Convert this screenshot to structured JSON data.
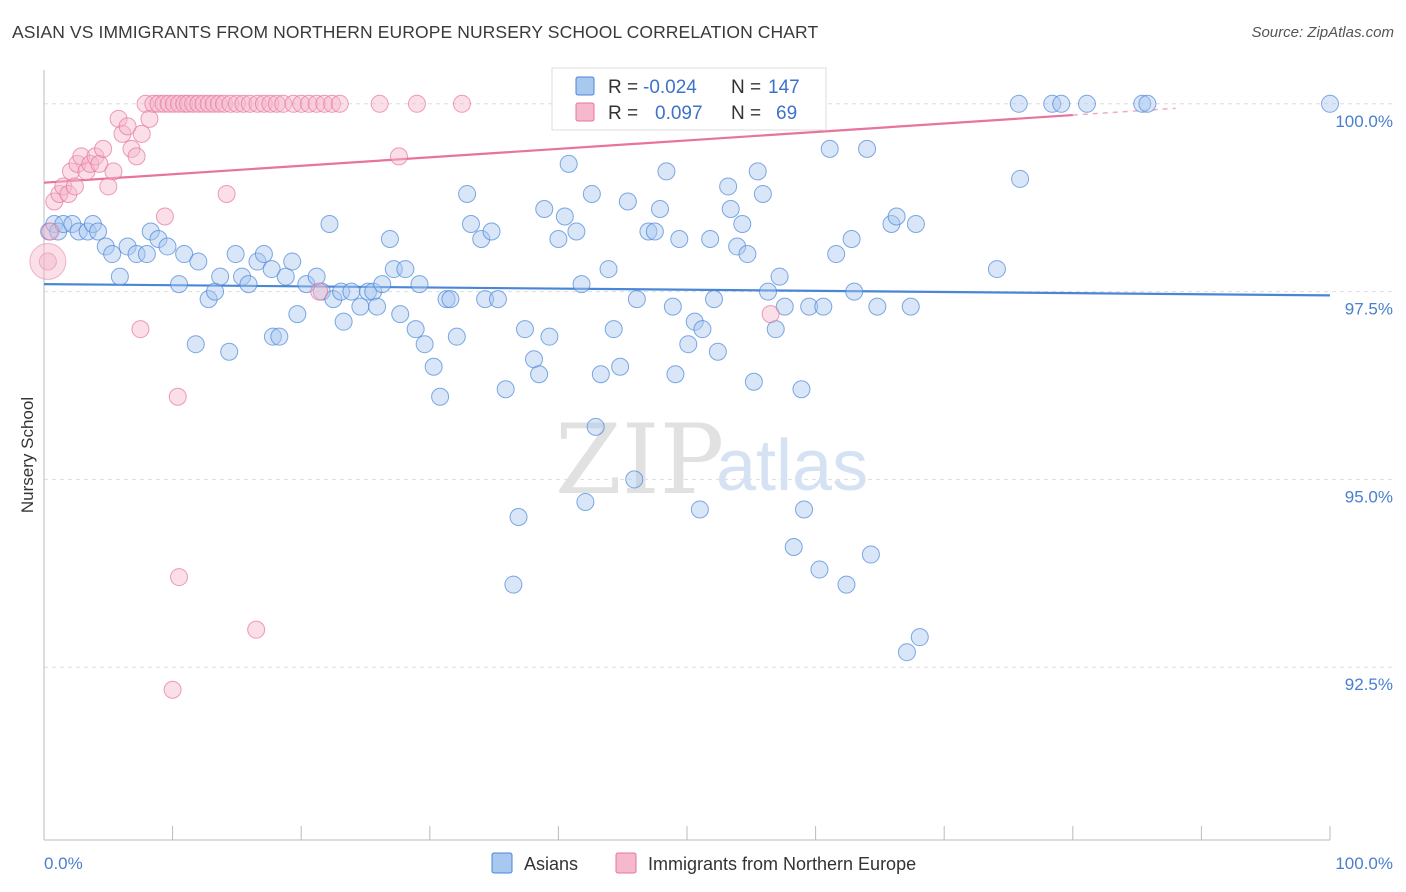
{
  "title": "ASIAN VS IMMIGRANTS FROM NORTHERN EUROPE NURSERY SCHOOL CORRELATION CHART",
  "source": "Source: ZipAtlas.com",
  "watermark": {
    "zip": "ZIP",
    "atlas": "atlas"
  },
  "colors": {
    "blue": "#4a86d8",
    "blue_fill": "#a9c8ef",
    "pink": "#e8739b",
    "pink_fill": "#f5b8cd",
    "tick": "#4a7fcc",
    "grid": "#dddddd"
  },
  "legend_box": {
    "rows": [
      {
        "r_label": "R =",
        "r_value": "-0.024",
        "n_label": "N =",
        "n_value": "147"
      },
      {
        "r_label": "R =",
        "r_value": "0.097",
        "n_label": "N =",
        "n_value": "69"
      }
    ]
  },
  "chart_data": {
    "type": "scatter",
    "title": "ASIAN VS IMMIGRANTS FROM NORTHERN EUROPE NURSERY SCHOOL CORRELATION CHART",
    "xlabel": "",
    "ylabel": "Nursery School",
    "xlim": [
      0,
      100
    ],
    "ylim": [
      90.2,
      100.45
    ],
    "x_tick_labels": [
      "0.0%",
      "100.0%"
    ],
    "y_ticks": [
      100.0,
      97.5,
      95.0,
      92.5
    ],
    "y_tick_labels": [
      "100.0%",
      "97.5%",
      "95.0%",
      "92.5%"
    ],
    "grid": true,
    "legend_position": "bottom",
    "series": [
      {
        "name": "Asians",
        "color": "#4a86d8",
        "trend": {
          "x": [
            0,
            100
          ],
          "y": [
            97.6,
            97.45
          ]
        },
        "points": [
          [
            0.4,
            98.3
          ],
          [
            0.8,
            98.4
          ],
          [
            1.1,
            98.3
          ],
          [
            1.5,
            98.4
          ],
          [
            2.2,
            98.4
          ],
          [
            2.7,
            98.3
          ],
          [
            3.4,
            98.3
          ],
          [
            3.8,
            98.4
          ],
          [
            4.2,
            98.3
          ],
          [
            4.8,
            98.1
          ],
          [
            5.3,
            98.0
          ],
          [
            5.9,
            97.7
          ],
          [
            6.5,
            98.1
          ],
          [
            7.2,
            98.0
          ],
          [
            8.0,
            98.0
          ],
          [
            8.3,
            98.3
          ],
          [
            8.9,
            98.2
          ],
          [
            9.6,
            98.1
          ],
          [
            10.5,
            97.6
          ],
          [
            10.9,
            98.0
          ],
          [
            11.8,
            96.8
          ],
          [
            12.0,
            97.9
          ],
          [
            12.8,
            97.4
          ],
          [
            13.3,
            97.5
          ],
          [
            13.7,
            97.7
          ],
          [
            14.4,
            96.7
          ],
          [
            14.9,
            98.0
          ],
          [
            15.4,
            97.7
          ],
          [
            15.9,
            97.6
          ],
          [
            16.6,
            97.9
          ],
          [
            17.1,
            98.0
          ],
          [
            17.7,
            97.8
          ],
          [
            17.8,
            96.9
          ],
          [
            18.3,
            96.9
          ],
          [
            18.8,
            97.7
          ],
          [
            19.3,
            97.9
          ],
          [
            19.7,
            97.2
          ],
          [
            20.4,
            97.6
          ],
          [
            21.2,
            97.7
          ],
          [
            21.6,
            97.5
          ],
          [
            22.2,
            98.4
          ],
          [
            22.5,
            97.4
          ],
          [
            23.1,
            97.5
          ],
          [
            23.3,
            97.1
          ],
          [
            23.9,
            97.5
          ],
          [
            24.6,
            97.3
          ],
          [
            25.2,
            97.5
          ],
          [
            25.6,
            97.5
          ],
          [
            25.9,
            97.3
          ],
          [
            26.3,
            97.6
          ],
          [
            26.9,
            98.2
          ],
          [
            27.2,
            97.8
          ],
          [
            27.7,
            97.2
          ],
          [
            28.1,
            97.8
          ],
          [
            28.9,
            97.0
          ],
          [
            29.2,
            97.6
          ],
          [
            29.6,
            96.8
          ],
          [
            30.3,
            96.5
          ],
          [
            30.8,
            96.1
          ],
          [
            31.3,
            97.4
          ],
          [
            31.6,
            97.4
          ],
          [
            32.1,
            96.9
          ],
          [
            32.9,
            98.8
          ],
          [
            33.2,
            98.4
          ],
          [
            34.0,
            98.2
          ],
          [
            34.3,
            97.4
          ],
          [
            34.8,
            98.3
          ],
          [
            35.3,
            97.4
          ],
          [
            35.9,
            96.2
          ],
          [
            36.5,
            93.6
          ],
          [
            36.9,
            94.5
          ],
          [
            37.4,
            97.0
          ],
          [
            38.1,
            96.6
          ],
          [
            38.5,
            96.4
          ],
          [
            38.9,
            98.6
          ],
          [
            39.3,
            96.9
          ],
          [
            40.0,
            98.2
          ],
          [
            40.5,
            98.5
          ],
          [
            40.8,
            99.2
          ],
          [
            41.4,
            98.3
          ],
          [
            41.8,
            97.6
          ],
          [
            42.1,
            94.7
          ],
          [
            42.6,
            98.8
          ],
          [
            42.9,
            95.7
          ],
          [
            43.3,
            96.4
          ],
          [
            43.9,
            97.8
          ],
          [
            44.3,
            97.0
          ],
          [
            44.8,
            96.5
          ],
          [
            45.4,
            98.7
          ],
          [
            45.9,
            95.0
          ],
          [
            46.1,
            97.4
          ],
          [
            46.8,
            99.8
          ],
          [
            47.0,
            98.3
          ],
          [
            47.5,
            98.3
          ],
          [
            47.9,
            98.6
          ],
          [
            48.4,
            99.1
          ],
          [
            48.9,
            97.3
          ],
          [
            49.1,
            96.4
          ],
          [
            49.4,
            98.2
          ],
          [
            50.1,
            96.8
          ],
          [
            50.6,
            97.1
          ],
          [
            51.0,
            94.6
          ],
          [
            51.2,
            97.0
          ],
          [
            51.8,
            98.2
          ],
          [
            52.1,
            97.4
          ],
          [
            52.4,
            96.7
          ],
          [
            53.2,
            98.9
          ],
          [
            53.4,
            98.6
          ],
          [
            53.9,
            98.1
          ],
          [
            54.3,
            98.4
          ],
          [
            54.7,
            98.0
          ],
          [
            55.2,
            96.3
          ],
          [
            55.5,
            99.1
          ],
          [
            55.9,
            98.8
          ],
          [
            56.3,
            97.5
          ],
          [
            56.9,
            97.0
          ],
          [
            57.2,
            97.7
          ],
          [
            57.6,
            97.3
          ],
          [
            58.3,
            94.1
          ],
          [
            58.9,
            96.2
          ],
          [
            59.1,
            94.6
          ],
          [
            59.5,
            97.3
          ],
          [
            60.3,
            93.8
          ],
          [
            60.6,
            97.3
          ],
          [
            61.1,
            99.4
          ],
          [
            61.6,
            98.0
          ],
          [
            62.4,
            93.6
          ],
          [
            62.8,
            98.2
          ],
          [
            63.0,
            97.5
          ],
          [
            64.0,
            99.4
          ],
          [
            64.3,
            94.0
          ],
          [
            64.8,
            97.3
          ],
          [
            65.9,
            98.4
          ],
          [
            66.3,
            98.5
          ],
          [
            67.1,
            92.7
          ],
          [
            67.4,
            97.3
          ],
          [
            67.8,
            98.4
          ],
          [
            68.1,
            92.9
          ],
          [
            74.1,
            97.8
          ],
          [
            75.9,
            99.0
          ],
          [
            75.8,
            100.0
          ],
          [
            78.4,
            100.0
          ],
          [
            79.1,
            100.0
          ],
          [
            81.1,
            100.0
          ],
          [
            85.4,
            100.0
          ],
          [
            85.8,
            100.0
          ],
          [
            100.0,
            100.0
          ]
        ]
      },
      {
        "name": "Immigrants from Northern Europe",
        "color": "#e8739b",
        "trend": {
          "x": [
            0,
            80
          ],
          "y": [
            98.95,
            99.85
          ]
        },
        "trend_dash": {
          "x": [
            80,
            88
          ],
          "y": [
            99.85,
            99.94
          ]
        },
        "points": [
          [
            0.3,
            97.9
          ],
          [
            0.5,
            98.3
          ],
          [
            0.8,
            98.7
          ],
          [
            1.2,
            98.8
          ],
          [
            1.5,
            98.9
          ],
          [
            1.9,
            98.8
          ],
          [
            2.1,
            99.1
          ],
          [
            2.4,
            98.9
          ],
          [
            2.6,
            99.2
          ],
          [
            2.9,
            99.3
          ],
          [
            3.3,
            99.1
          ],
          [
            3.6,
            99.2
          ],
          [
            4.0,
            99.3
          ],
          [
            4.3,
            99.2
          ],
          [
            4.6,
            99.4
          ],
          [
            5.0,
            98.9
          ],
          [
            5.4,
            99.1
          ],
          [
            5.8,
            99.8
          ],
          [
            6.1,
            99.6
          ],
          [
            6.5,
            99.7
          ],
          [
            6.8,
            99.4
          ],
          [
            7.2,
            99.3
          ],
          [
            7.6,
            99.6
          ],
          [
            7.9,
            100.0
          ],
          [
            8.2,
            99.8
          ],
          [
            8.5,
            100.0
          ],
          [
            8.9,
            100.0
          ],
          [
            9.3,
            100.0
          ],
          [
            9.7,
            100.0
          ],
          [
            10.1,
            100.0
          ],
          [
            10.5,
            100.0
          ],
          [
            10.9,
            100.0
          ],
          [
            11.2,
            100.0
          ],
          [
            11.6,
            100.0
          ],
          [
            12.0,
            100.0
          ],
          [
            12.4,
            100.0
          ],
          [
            12.8,
            100.0
          ],
          [
            13.2,
            100.0
          ],
          [
            13.6,
            100.0
          ],
          [
            14.0,
            100.0
          ],
          [
            14.5,
            100.0
          ],
          [
            15.0,
            100.0
          ],
          [
            15.5,
            100.0
          ],
          [
            16.0,
            100.0
          ],
          [
            16.6,
            100.0
          ],
          [
            17.1,
            100.0
          ],
          [
            17.6,
            100.0
          ],
          [
            18.1,
            100.0
          ],
          [
            18.6,
            100.0
          ],
          [
            19.4,
            100.0
          ],
          [
            20.0,
            100.0
          ],
          [
            20.6,
            100.0
          ],
          [
            21.2,
            100.0
          ],
          [
            21.8,
            100.0
          ],
          [
            22.4,
            100.0
          ],
          [
            23.0,
            100.0
          ],
          [
            26.1,
            100.0
          ],
          [
            29.0,
            100.0
          ],
          [
            32.5,
            100.0
          ],
          [
            7.5,
            97.0
          ],
          [
            9.4,
            98.5
          ],
          [
            10.4,
            96.1
          ],
          [
            10.5,
            93.7
          ],
          [
            10.0,
            92.2
          ],
          [
            14.2,
            98.8
          ],
          [
            16.5,
            93.0
          ],
          [
            21.4,
            97.5
          ],
          [
            27.6,
            99.3
          ],
          [
            56.5,
            97.2
          ]
        ]
      }
    ]
  }
}
